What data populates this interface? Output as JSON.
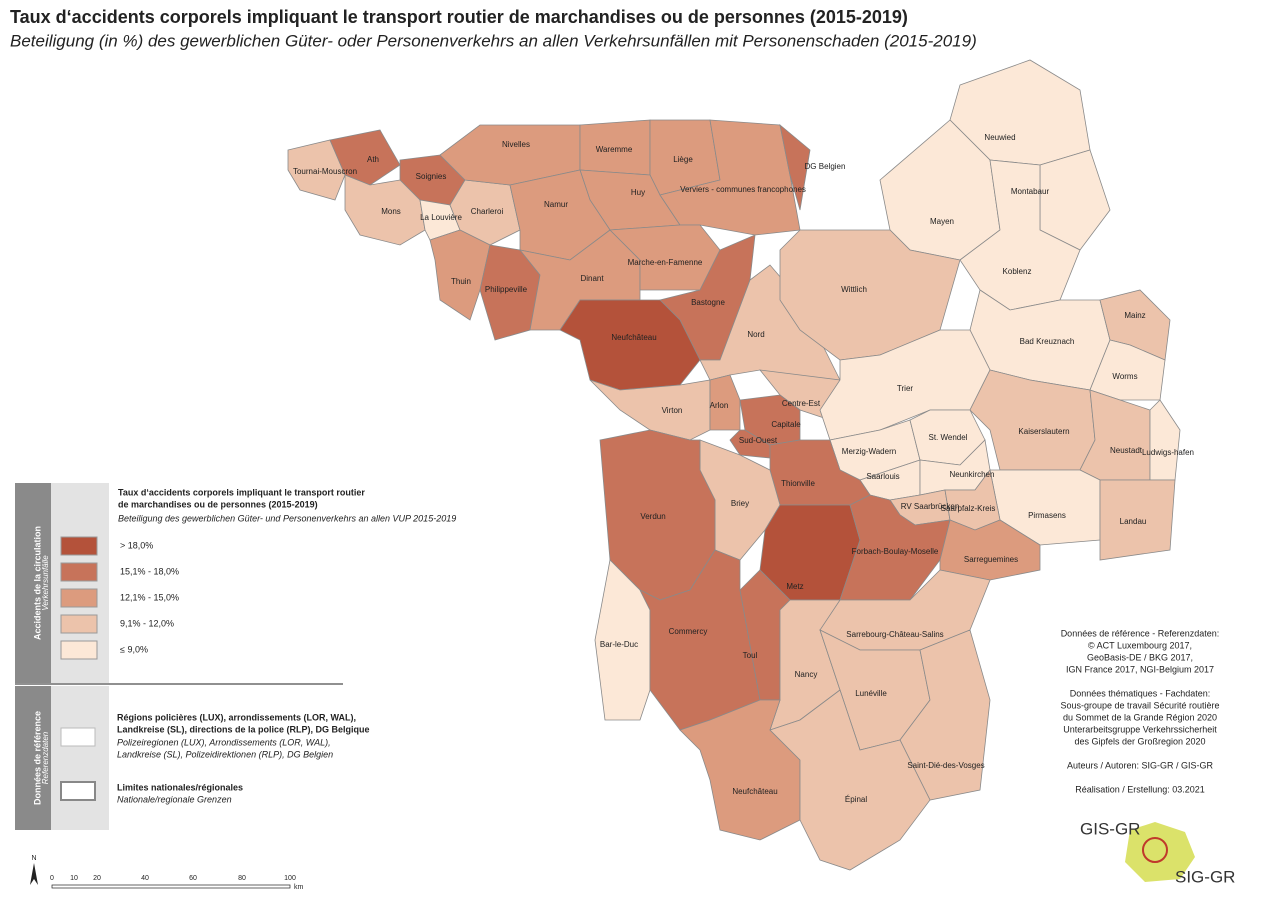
{
  "header": {
    "title": "Taux d‘accidents corporels impliquant le transport routier de marchandises ou de personnes (2015-2019)",
    "subtitle": "Beteiligung (in %) des gewerblichen Güter- oder Personenverkehrs an allen Verkehrsunfällen mit Personenschaden (2015-2019)"
  },
  "legend": {
    "side_fr": "Accidents de la circulation",
    "side_de": "Verkehrsunfälle",
    "title_1": "Taux d‘accidents corporels impliquant le transport routier",
    "title_2": "de marchandises ou de personnes (2015-2019)",
    "title_de": "Beteiligung des gewerblichen Güter- und Personenverkehrs an allen VUP 2015-2019",
    "classes": [
      {
        "label": "> 18,0%",
        "color": "#b4523a"
      },
      {
        "label": "15,1% - 18,0%",
        "color": "#c7735a"
      },
      {
        "label": "12,1% - 15,0%",
        "color": "#dc9b7e"
      },
      {
        "label": "9,1% - 12,0%",
        "color": "#ecc3ab"
      },
      {
        "label": "≤ 9,0%",
        "color": "#fce8d7"
      }
    ],
    "ref_side_fr": "Données de référence",
    "ref_side_de": "Referenzdaten",
    "ref_1": [
      "Régions policières (LUX), arrondissements (LOR, WAL),",
      "Landkreise (SL), directions de la police (RLP), DG Belgique"
    ],
    "ref_1_de": [
      "Polizeiregionen (LUX), Arrondissements (LOR, WAL),",
      "Landkreise (SL), Polizeidirektionen (RLP), DG Belgien"
    ],
    "ref_2": "Limites nationales/régionales",
    "ref_2_de": "Nationale/regionale Grenzen"
  },
  "credits": [
    "Données de référence - Referenzdaten:",
    "© ACT Luxembourg 2017,",
    "GeoBasis-DE / BKG 2017,",
    "IGN France 2017, NGI-Belgium 2017",
    "",
    "Données thématiques - Fachdaten:",
    "Sous-groupe de travail Sécurité routière",
    "du Sommet de la Grande Région 2020",
    "Unterarbeitsgruppe Verkehrssicherheit",
    "des Gipfels der Großregion 2020",
    "",
    "Auteurs / Autoren: SIG-GR / GIS-GR",
    "",
    "Réalisation / Erstellung: 03.2021"
  ],
  "logo": {
    "top": "GIS-GR",
    "bottom": "SIG-GR"
  },
  "scale": {
    "north": "N",
    "ticks": [
      "0",
      "10",
      "20",
      "40",
      "60",
      "80",
      "100"
    ],
    "unit": "km"
  },
  "regions": [
    {
      "label": "Tournai-Mouscron",
      "class": 3
    },
    {
      "label": "Ath",
      "class": 1
    },
    {
      "label": "Soignies",
      "class": 1
    },
    {
      "label": "Mons",
      "class": 3
    },
    {
      "label": "La Louvière",
      "class": 4
    },
    {
      "label": "Charleroi",
      "class": 3
    },
    {
      "label": "Nivelles",
      "class": 2
    },
    {
      "label": "Waremme",
      "class": 2
    },
    {
      "label": "Liège",
      "class": 2
    },
    {
      "label": "Huy",
      "class": 2
    },
    {
      "label": "Namur",
      "class": 2
    },
    {
      "label": "Verviers - communes francophones",
      "class": 2
    },
    {
      "label": "DG Belgien",
      "class": 1
    },
    {
      "label": "Thuin",
      "class": 2
    },
    {
      "label": "Philippeville",
      "class": 1
    },
    {
      "label": "Dinant",
      "class": 2
    },
    {
      "label": "Marche-en-Famenne",
      "class": 2
    },
    {
      "label": "Bastogne",
      "class": 1
    },
    {
      "label": "Neufchâteau",
      "class": 0
    },
    {
      "label": "Virton",
      "class": 3
    },
    {
      "label": "Nord",
      "class": 3
    },
    {
      "label": "Arlon",
      "class": 2
    },
    {
      "label": "Centre-Est",
      "class": 3
    },
    {
      "label": "Capitale",
      "class": 1
    },
    {
      "label": "Sud-Ouest",
      "class": 1
    },
    {
      "label": "Neuwied",
      "class": 4
    },
    {
      "label": "Montabaur",
      "class": 4
    },
    {
      "label": "Mayen",
      "class": 4
    },
    {
      "label": "Koblenz",
      "class": 4
    },
    {
      "label": "Wittlich",
      "class": 3
    },
    {
      "label": "Bad Kreuznach",
      "class": 4
    },
    {
      "label": "Mainz",
      "class": 3
    },
    {
      "label": "Worms",
      "class": 4
    },
    {
      "label": "Trier",
      "class": 4
    },
    {
      "label": "Kaiserslautern",
      "class": 3
    },
    {
      "label": "Neustadt",
      "class": 3
    },
    {
      "label": "Ludwigs-hafen",
      "class": 4
    },
    {
      "label": "Pirmasens",
      "class": 4
    },
    {
      "label": "Landau",
      "class": 3
    },
    {
      "label": "Merzig-Wadern",
      "class": 4
    },
    {
      "label": "St. Wendel",
      "class": 4
    },
    {
      "label": "Saarlouis",
      "class": 4
    },
    {
      "label": "Neunkirchen",
      "class": 4
    },
    {
      "label": "RV Saarbrücken",
      "class": 3
    },
    {
      "label": "Saarpfalz-Kreis",
      "class": 3
    },
    {
      "label": "Thionville",
      "class": 1
    },
    {
      "label": "Briey",
      "class": 3
    },
    {
      "label": "Verdun",
      "class": 1
    },
    {
      "label": "Metz",
      "class": 0
    },
    {
      "label": "Forbach-Boulay-Moselle",
      "class": 1
    },
    {
      "label": "Sarreguemines",
      "class": 2
    },
    {
      "label": "Sarrebourg-Château-Salins",
      "class": 3
    },
    {
      "label": "Bar-le-Duc",
      "class": 4
    },
    {
      "label": "Commercy",
      "class": 1
    },
    {
      "label": "Toul",
      "class": 1
    },
    {
      "label": "Nancy",
      "class": 3
    },
    {
      "label": "Lunéville",
      "class": 3
    },
    {
      "label": "Saint-Dié-des-Vosges",
      "class": 3
    },
    {
      "label": "Neufchâteau",
      "class": 2
    },
    {
      "label": "Épinal",
      "class": 3
    }
  ]
}
